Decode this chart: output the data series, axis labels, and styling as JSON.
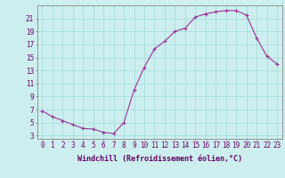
{
  "x": [
    0,
    1,
    2,
    3,
    4,
    5,
    6,
    7,
    8,
    9,
    10,
    11,
    12,
    13,
    14,
    15,
    16,
    17,
    18,
    19,
    20,
    21,
    22,
    23
  ],
  "y": [
    6.8,
    5.9,
    5.3,
    4.7,
    4.1,
    4.0,
    3.5,
    3.3,
    5.0,
    10.0,
    13.5,
    16.3,
    17.5,
    19.0,
    19.5,
    21.2,
    21.7,
    22.0,
    22.2,
    22.2,
    21.5,
    18.0,
    15.2,
    14.0
  ],
  "line_color": "#993399",
  "marker": "+",
  "bg_color": "#cceeee",
  "grid_color": "#aadddd",
  "tick_label_color": "#660066",
  "xlabel": "Windchill (Refroidissement éolien,°C)",
  "ylabel_ticks": [
    3,
    5,
    7,
    9,
    11,
    13,
    15,
    17,
    19,
    21
  ],
  "xlim": [
    -0.5,
    23.5
  ],
  "ylim": [
    2.5,
    23.0
  ],
  "xticks": [
    0,
    1,
    2,
    3,
    4,
    5,
    6,
    7,
    8,
    9,
    10,
    11,
    12,
    13,
    14,
    15,
    16,
    17,
    18,
    19,
    20,
    21,
    22,
    23
  ],
  "font_size": 5.5
}
